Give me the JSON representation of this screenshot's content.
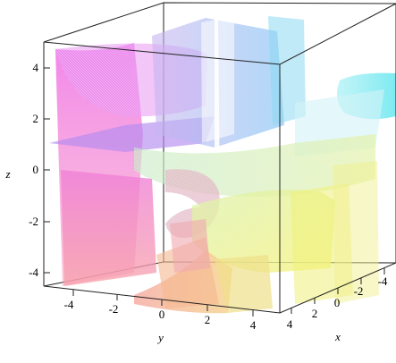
{
  "chart_data": {
    "type": "surface3d",
    "xlabel": "x",
    "ylabel": "y",
    "zlabel": "z",
    "x_ticks": [
      "-4",
      "-2",
      "0",
      "2",
      "4"
    ],
    "y_ticks": [
      "-4",
      "-2",
      "0",
      "2",
      "4"
    ],
    "z_ticks": [
      "4",
      "2",
      "0",
      "-2",
      "-4"
    ],
    "xlim": [
      -5,
      5
    ],
    "ylim": [
      -5,
      5
    ],
    "zlim": [
      -5,
      5
    ],
    "box": true,
    "colors": {
      "magenta": "#f070e8",
      "pink": "#f79ac0",
      "violet": "#b48cf0",
      "blue": "#8cb4f5",
      "cyan": "#7ceef2",
      "green": "#a8e6a8",
      "yellow": "#eef07a",
      "orange": "#f5c28a"
    }
  }
}
